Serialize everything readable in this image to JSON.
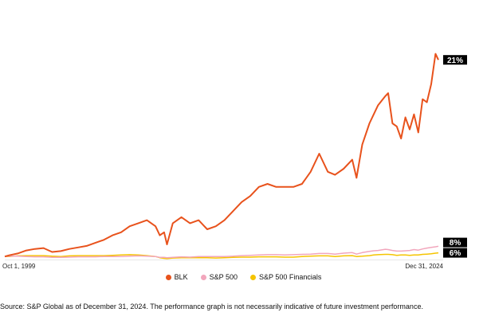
{
  "chart_data": {
    "type": "line",
    "title": "",
    "xlabel": "",
    "ylabel": "",
    "x_start_label": "Oct 1, 1999",
    "x_end_label": "Dec 31, 2024",
    "x": [
      "1999-10",
      "2000-01",
      "2000-07",
      "2001-01",
      "2001-07",
      "2002-01",
      "2002-07",
      "2003-01",
      "2003-07",
      "2004-01",
      "2004-07",
      "2005-01",
      "2005-07",
      "2006-01",
      "2006-07",
      "2007-01",
      "2007-07",
      "2008-01",
      "2008-07",
      "2008-10",
      "2009-01",
      "2009-03",
      "2009-07",
      "2010-01",
      "2010-07",
      "2011-01",
      "2011-07",
      "2012-01",
      "2012-07",
      "2013-01",
      "2013-07",
      "2014-01",
      "2014-07",
      "2015-01",
      "2015-07",
      "2016-01",
      "2016-07",
      "2017-01",
      "2017-07",
      "2018-01",
      "2018-07",
      "2018-12",
      "2019-06",
      "2019-12",
      "2020-03",
      "2020-07",
      "2020-12",
      "2021-03",
      "2021-06",
      "2021-11",
      "2022-01",
      "2022-04",
      "2022-07",
      "2022-10",
      "2023-01",
      "2023-04",
      "2023-07",
      "2023-10",
      "2024-01",
      "2024-04",
      "2024-07",
      "2024-10",
      "2024-12"
    ],
    "series": [
      {
        "name": "BLK",
        "color": "#e8521c",
        "values": [
          1,
          1.4,
          2,
          3,
          3.5,
          3.8,
          2.5,
          2.8,
          3.5,
          4,
          4.5,
          5.5,
          6.5,
          8,
          9,
          11,
          12,
          13,
          11,
          8,
          9,
          5,
          12,
          14,
          12,
          13,
          10,
          11,
          13,
          16,
          19,
          21,
          24,
          25,
          24,
          24,
          24,
          25,
          29,
          35,
          29,
          28,
          30,
          33,
          27,
          38,
          45,
          48,
          51,
          54,
          55,
          45,
          44,
          40,
          47,
          43,
          48,
          42,
          53,
          52,
          58,
          68,
          66
        ],
        "end_label": "21%"
      },
      {
        "name": "S&P 500",
        "color": "#f2a6bc",
        "values": [
          1,
          1.1,
          1.1,
          1,
          0.9,
          0.9,
          0.7,
          0.7,
          0.8,
          0.9,
          0.9,
          0.9,
          1,
          1,
          1,
          1.1,
          1.2,
          1.1,
          1,
          0.7,
          0.7,
          0.6,
          0.7,
          0.9,
          0.8,
          1,
          1,
          1,
          1,
          1.1,
          1.3,
          1.4,
          1.5,
          1.6,
          1.6,
          1.5,
          1.6,
          1.7,
          1.8,
          2,
          2,
          1.8,
          2.1,
          2.3,
          1.8,
          2.3,
          2.7,
          2.9,
          3,
          3.4,
          3.3,
          3,
          2.8,
          2.8,
          2.9,
          3,
          3.3,
          3.1,
          3.5,
          3.8,
          4,
          4.2,
          4.4
        ],
        "end_label": "8%"
      },
      {
        "name": "S&P 500 Financials",
        "color": "#f5c400",
        "values": [
          1,
          1,
          1.2,
          1.3,
          1.3,
          1.3,
          1.1,
          1,
          1.2,
          1.3,
          1.3,
          1.3,
          1.3,
          1.4,
          1.5,
          1.6,
          1.5,
          1.3,
          1,
          0.6,
          0.4,
          0.3,
          0.5,
          0.6,
          0.6,
          0.6,
          0.6,
          0.5,
          0.6,
          0.7,
          0.8,
          0.8,
          0.9,
          0.9,
          0.9,
          0.8,
          0.8,
          1,
          1.1,
          1.2,
          1.2,
          1,
          1.2,
          1.3,
          1,
          1.1,
          1.3,
          1.5,
          1.6,
          1.7,
          1.7,
          1.6,
          1.4,
          1.5,
          1.5,
          1.4,
          1.5,
          1.5,
          1.7,
          1.8,
          1.9,
          2.1,
          2.2
        ],
        "end_label": "6%"
      }
    ],
    "ylim": [
      0,
      70
    ],
    "grid": false,
    "legend_position": "bottom"
  },
  "footnote": "Source: S&P Global as of December 31, 2024. The performance graph is not necessarily indicative of future investment performance."
}
